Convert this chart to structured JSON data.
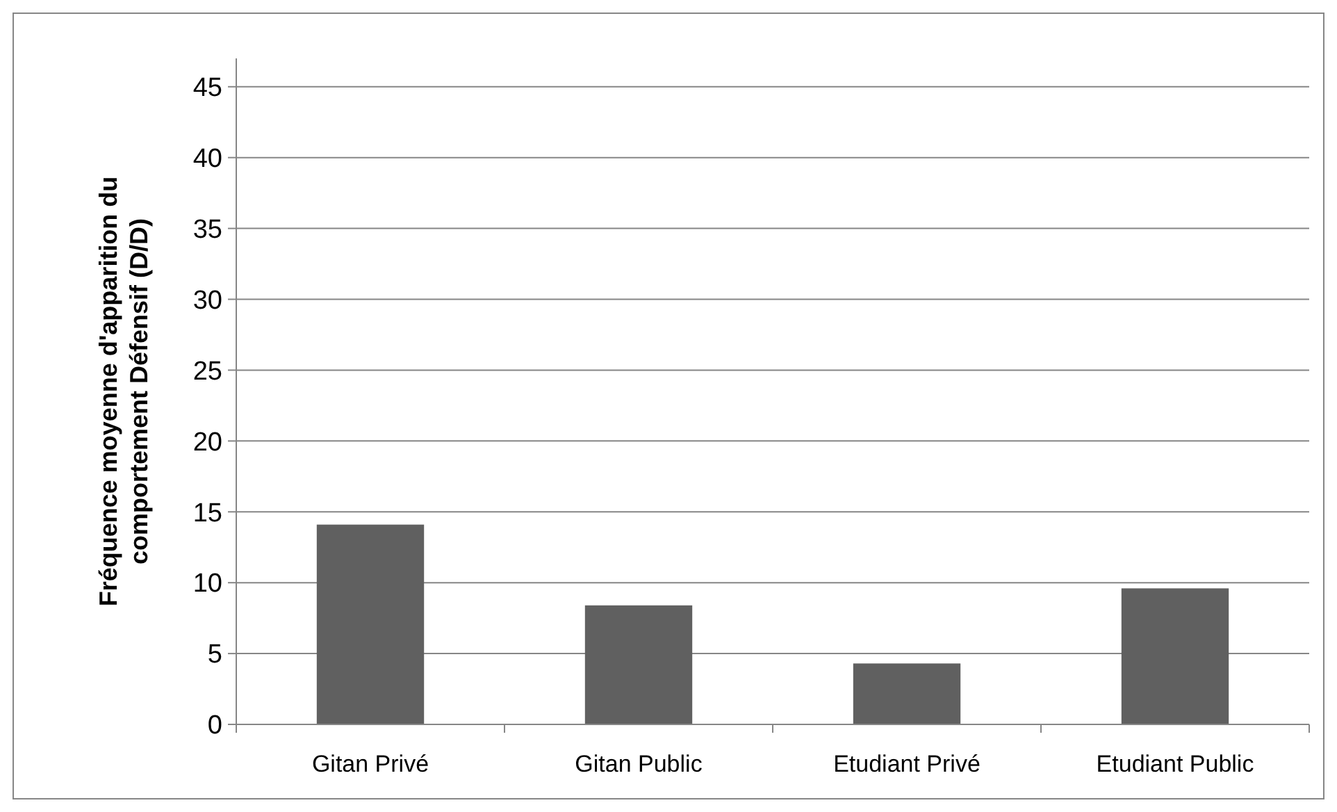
{
  "chart_data": {
    "type": "bar",
    "ylabel": "Fréquence moyenne d'apparition du\ncomportement Défensif (D/D)",
    "categories": [
      "Gitan Privé",
      "Gitan Public",
      "Etudiant Privé",
      "Etudiant Public"
    ],
    "values": [
      14.1,
      8.4,
      4.3,
      9.6
    ],
    "color": "#606060",
    "ylim": [
      0,
      47
    ],
    "yticks": [
      0,
      5,
      10,
      15,
      20,
      25,
      30,
      35,
      40,
      45
    ],
    "grid": "y"
  }
}
